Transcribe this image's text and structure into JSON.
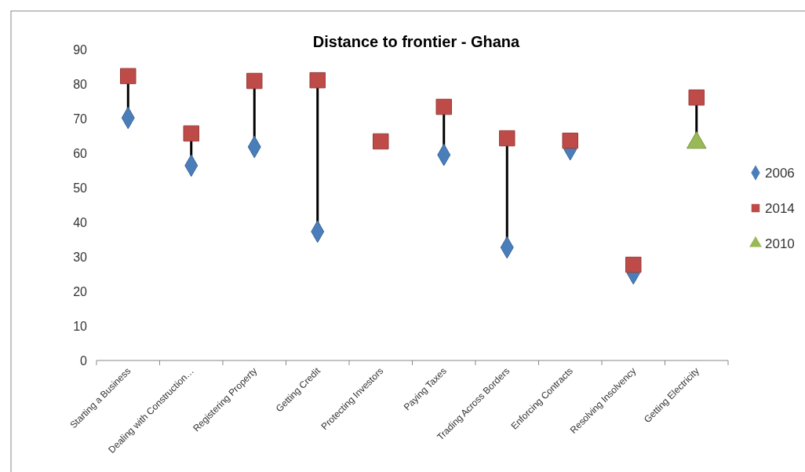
{
  "chart_data": {
    "type": "scatter",
    "title": "Distance to frontier - Ghana",
    "categories": [
      "Starting a Business",
      "Dealing with Construction…",
      "Registering Property",
      "Getting Credit",
      "Protecting Investors",
      "Paying Taxes",
      "Trading Across Borders",
      "Enforcing Contracts",
      "Resolving Insolvency",
      "Getting Electricity"
    ],
    "series": [
      {
        "name": "2006",
        "color": "#4a7ebb",
        "marker": "diamond",
        "values": [
          70.2,
          56.4,
          61.8,
          37.3,
          null,
          59.5,
          32.7,
          61.1,
          25.2,
          null
        ]
      },
      {
        "name": "2014",
        "color": "#be4b48",
        "marker": "square",
        "values": [
          82.3,
          65.7,
          80.9,
          81.1,
          63.4,
          73.4,
          64.3,
          63.6,
          27.7,
          76.1
        ]
      },
      {
        "name": "2010",
        "color": "#98b954",
        "marker": "triangle",
        "values": [
          null,
          null,
          null,
          null,
          null,
          null,
          null,
          null,
          null,
          63
        ]
      }
    ],
    "ylim": [
      0,
      90
    ],
    "yticks": [
      0,
      10,
      20,
      30,
      40,
      50,
      60,
      70,
      80,
      90
    ],
    "grid": false,
    "legend": "right"
  }
}
